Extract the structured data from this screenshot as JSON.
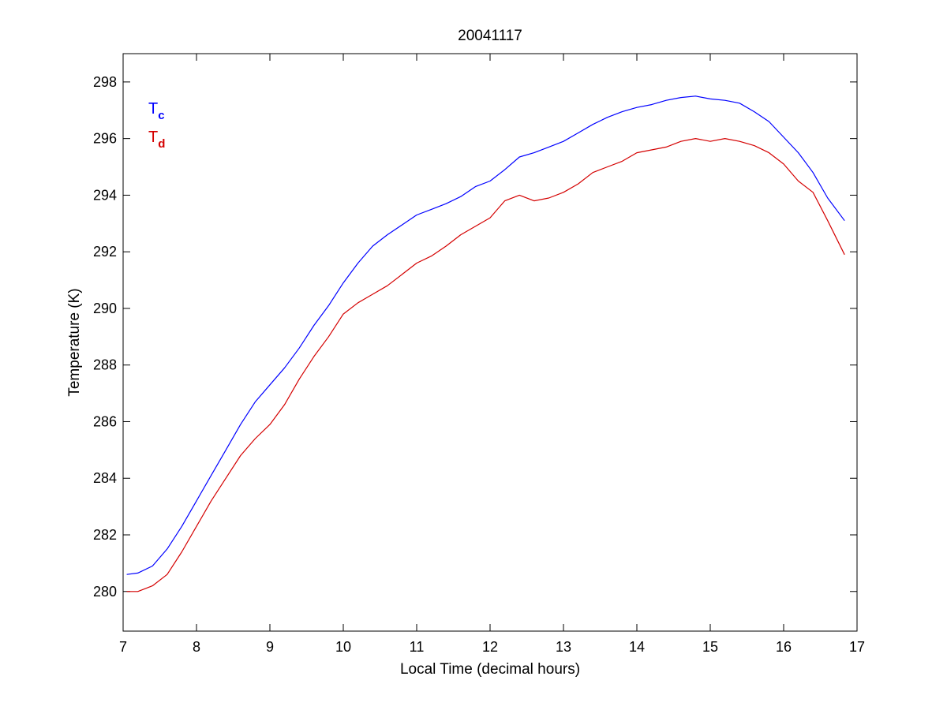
{
  "chart_data": {
    "type": "line",
    "title": "20041117",
    "xlabel": "Local Time (decimal hours)",
    "ylabel": "Temperature (K)",
    "xlim": [
      7,
      17
    ],
    "ylim": [
      278.6,
      299
    ],
    "xticks": [
      7,
      8,
      9,
      10,
      11,
      12,
      13,
      14,
      15,
      16,
      17
    ],
    "yticks": [
      280,
      282,
      284,
      286,
      288,
      290,
      292,
      294,
      296,
      298
    ],
    "grid": false,
    "legend_placement": "top-left",
    "series": [
      {
        "key": "Tc",
        "legend_main": "T",
        "legend_sub": "c",
        "color": "#0000ff",
        "x": [
          7.05,
          7.2,
          7.4,
          7.6,
          7.8,
          8.0,
          8.2,
          8.4,
          8.6,
          8.8,
          9.0,
          9.2,
          9.4,
          9.6,
          9.8,
          10.0,
          10.2,
          10.4,
          10.6,
          10.8,
          11.0,
          11.2,
          11.4,
          11.6,
          11.8,
          12.0,
          12.2,
          12.4,
          12.6,
          12.8,
          13.0,
          13.2,
          13.4,
          13.6,
          13.8,
          14.0,
          14.2,
          14.4,
          14.6,
          14.8,
          15.0,
          15.2,
          15.4,
          15.6,
          15.8,
          16.0,
          16.2,
          16.4,
          16.6,
          16.83
        ],
        "y": [
          280.6,
          280.65,
          280.9,
          281.5,
          282.3,
          283.2,
          284.1,
          285.0,
          285.9,
          286.7,
          287.3,
          287.9,
          288.6,
          289.4,
          290.1,
          290.9,
          291.6,
          292.2,
          292.6,
          292.95,
          293.3,
          293.5,
          293.7,
          293.95,
          294.3,
          294.5,
          294.9,
          295.35,
          295.5,
          295.7,
          295.9,
          296.2,
          296.5,
          296.75,
          296.95,
          297.1,
          297.2,
          297.35,
          297.45,
          297.5,
          297.4,
          297.35,
          297.25,
          296.95,
          296.6,
          296.05,
          295.5,
          294.8,
          293.9,
          293.1
        ]
      },
      {
        "key": "Td",
        "legend_main": "T",
        "legend_sub": "d",
        "color": "#d40000",
        "x": [
          7.05,
          7.2,
          7.4,
          7.6,
          7.8,
          8.0,
          8.2,
          8.4,
          8.6,
          8.8,
          9.0,
          9.2,
          9.4,
          9.6,
          9.8,
          10.0,
          10.2,
          10.4,
          10.6,
          10.8,
          11.0,
          11.2,
          11.4,
          11.6,
          11.8,
          12.0,
          12.2,
          12.4,
          12.6,
          12.8,
          13.0,
          13.2,
          13.4,
          13.6,
          13.8,
          14.0,
          14.2,
          14.4,
          14.6,
          14.8,
          15.0,
          15.2,
          15.4,
          15.6,
          15.8,
          16.0,
          16.2,
          16.4,
          16.6,
          16.83
        ],
        "y": [
          280.0,
          280.0,
          280.2,
          280.6,
          281.4,
          282.3,
          283.2,
          284.0,
          284.8,
          285.4,
          285.9,
          286.6,
          287.5,
          288.3,
          289.0,
          289.8,
          290.2,
          290.5,
          290.8,
          291.2,
          291.6,
          291.85,
          292.2,
          292.6,
          292.9,
          293.2,
          293.8,
          294.0,
          293.8,
          293.9,
          294.1,
          294.4,
          294.8,
          295.0,
          295.2,
          295.5,
          295.6,
          295.7,
          295.9,
          296.0,
          295.9,
          296.0,
          295.9,
          295.75,
          295.5,
          295.1,
          294.5,
          294.1,
          293.1,
          291.9
        ]
      }
    ]
  }
}
